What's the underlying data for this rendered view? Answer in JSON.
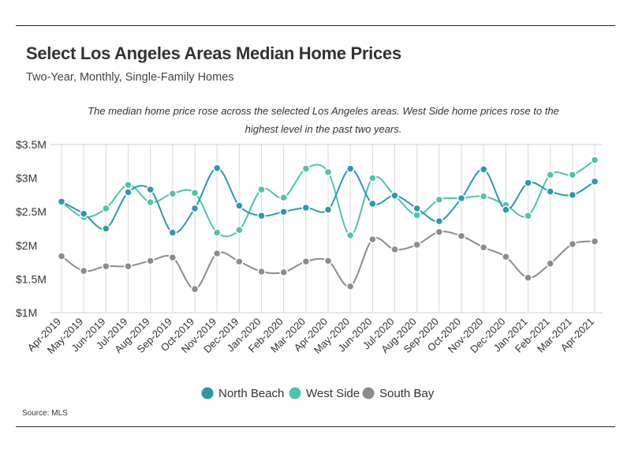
{
  "header": {
    "title": "Select Los Angeles Areas Median Home Prices",
    "subtitle": "Two-Year, Monthly, Single-Family Homes",
    "note": "The median home price rose across the selected Los Angeles areas. West Side home prices rose to the highest level in the past two years."
  },
  "footer": {
    "source": "Source:  MLS"
  },
  "chart_data": {
    "type": "line",
    "title": "Select Los Angeles Areas Median Home Prices",
    "subtitle": "Two-Year, Monthly, Single-Family Homes",
    "xlabel": "",
    "ylabel": "",
    "ylim": [
      1,
      3.5
    ],
    "yticks": [
      1,
      1.5,
      2,
      2.5,
      3,
      3.5
    ],
    "ytick_labels": [
      "$1M",
      "$1.5M",
      "$2M",
      "$2.5M",
      "$3M",
      "$3.5M"
    ],
    "grid": "vertical",
    "legend_position": "bottom-center",
    "categories": [
      "Apr-2019",
      "May-2019",
      "Jun-2019",
      "Jul-2019",
      "Aug-2019",
      "Sep-2019",
      "Oct-2019",
      "Nov-2019",
      "Dec-2019",
      "Jan-2020",
      "Feb-2020",
      "Mar-2020",
      "Apr-2020",
      "May-2020",
      "Jun-2020",
      "Jul-2020",
      "Aug-2020",
      "Sep-2020",
      "Oct-2020",
      "Nov-2020",
      "Dec-2020",
      "Jan-2021",
      "Feb-2021",
      "Mar-2021",
      "Apr-2021"
    ],
    "series": [
      {
        "name": "North Beach",
        "color": "#2a9aa8",
        "values": [
          2.65,
          2.47,
          2.25,
          2.79,
          2.83,
          2.19,
          2.55,
          3.15,
          2.59,
          2.44,
          2.5,
          2.56,
          2.53,
          3.14,
          2.62,
          2.74,
          2.55,
          2.36,
          2.7,
          3.13,
          2.53,
          2.93,
          2.8,
          2.75,
          2.95
        ]
      },
      {
        "name": "West Side",
        "color": "#4fc4aa",
        "values": [
          2.65,
          2.42,
          2.55,
          2.9,
          2.64,
          2.77,
          2.78,
          2.19,
          2.23,
          2.83,
          2.71,
          3.14,
          3.09,
          2.15,
          3.0,
          2.74,
          2.45,
          2.68,
          2.7,
          2.73,
          2.6,
          2.44,
          3.05,
          3.05,
          3.27
        ]
      },
      {
        "name": "South Bay",
        "color": "#8c8c8c",
        "values": [
          1.84,
          1.62,
          1.69,
          1.69,
          1.77,
          1.82,
          1.35,
          1.88,
          1.76,
          1.61,
          1.6,
          1.76,
          1.77,
          1.39,
          2.09,
          1.94,
          2.01,
          2.2,
          2.14,
          1.97,
          1.83,
          1.52,
          1.73,
          2.02,
          2.06
        ]
      }
    ]
  }
}
